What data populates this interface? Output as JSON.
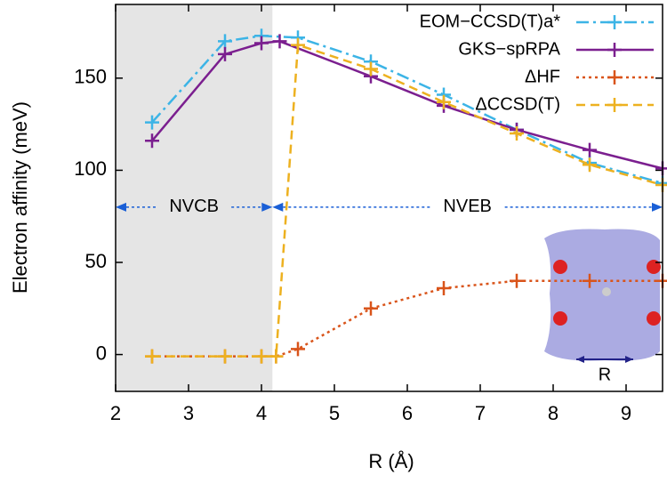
{
  "chart_data": {
    "type": "line",
    "xlabel": "R (Å)",
    "ylabel": "Electron affinity (meV)",
    "xlim": [
      2,
      9.5
    ],
    "ylim": [
      -20,
      190
    ],
    "xticks": [
      2,
      3,
      4,
      5,
      6,
      7,
      8,
      9
    ],
    "yticks": [
      0,
      50,
      100,
      150
    ],
    "legend": "upper right",
    "shaded_region": {
      "x": [
        2,
        4.15
      ],
      "color": "#e5e5e5"
    },
    "annotations": [
      {
        "text": "NVCB",
        "x": [
          2,
          4.15
        ],
        "y": 80
      },
      {
        "text": "NVEB",
        "x": [
          4.15,
          9.5
        ],
        "y": 80
      }
    ],
    "inset": {
      "label": "R"
    },
    "series": [
      {
        "name": "EOM−CCSD(T)a*",
        "color": "#3cb4e6",
        "dash": "14,5,3,5",
        "x": [
          2.5,
          3.5,
          4.0,
          4.5,
          5.5,
          6.5,
          7.5,
          8.5,
          9.5
        ],
        "values": [
          126,
          170,
          173,
          172,
          159,
          141,
          122,
          104,
          93
        ]
      },
      {
        "name": "GKS−spRPA",
        "color": "#7b1f8f",
        "dash": "",
        "x": [
          2.5,
          3.5,
          4.0,
          4.25,
          5.5,
          6.5,
          7.5,
          8.5,
          9.5
        ],
        "values": [
          116,
          163,
          169,
          170,
          151,
          135,
          122,
          111,
          101
        ]
      },
      {
        "name": "ΔHF",
        "color": "#d9541a",
        "dash": "3,4",
        "x": [
          2.5,
          3.5,
          4.0,
          4.2,
          4.5,
          5.5,
          6.5,
          7.5,
          8.5,
          9.5
        ],
        "values": [
          -1,
          -1,
          -1,
          -1,
          3,
          25,
          36,
          40,
          40,
          40
        ]
      },
      {
        "name": "ΔCCSD(T)",
        "color": "#edb120",
        "dash": "10,6",
        "x": [
          2.5,
          3.5,
          4.0,
          4.2,
          4.5,
          5.5,
          6.5,
          7.5,
          8.5,
          9.5
        ],
        "values": [
          -1,
          -1,
          -1,
          -1,
          168,
          155,
          137,
          120,
          103,
          92
        ]
      }
    ]
  }
}
